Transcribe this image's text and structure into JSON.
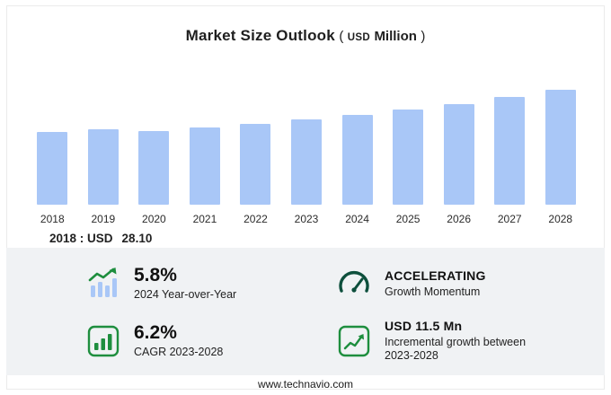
{
  "title": {
    "main": "Market Size Outlook",
    "paren_open": "(",
    "currency": "USD",
    "unit": "Million",
    "paren_close": ")"
  },
  "chart_data": {
    "type": "bar",
    "title": "Market Size Outlook (USD Million)",
    "categories": [
      "2018",
      "2019",
      "2020",
      "2021",
      "2022",
      "2023",
      "2024",
      "2025",
      "2026",
      "2027",
      "2028"
    ],
    "values": [
      28.1,
      29.0,
      28.3,
      29.6,
      31.2,
      32.7,
      34.6,
      36.6,
      38.6,
      41.5,
      44.2
    ],
    "xlabel": "",
    "ylabel": "USD Million",
    "ylim": [
      0,
      46
    ],
    "grid": false,
    "legend": "none",
    "bar_color": "#a9c7f7"
  },
  "annotation": {
    "label": "2018 : USD",
    "value": "28.10"
  },
  "stats": [
    {
      "icon": "bars-growth-icon",
      "value": "5.8%",
      "label": "2024 Year-over-Year"
    },
    {
      "icon": "gauge-icon",
      "value": "ACCELERATING",
      "label": "Growth Momentum"
    },
    {
      "icon": "bar-chart-icon",
      "value": "6.2%",
      "label": "CAGR 2023-2028"
    },
    {
      "icon": "line-chart-icon",
      "value": "USD 11.5 Mn",
      "label": "Incremental growth between 2023-2028"
    }
  ],
  "footer": {
    "url": "www.technavio.com"
  },
  "colors": {
    "bar": "#a9c7f7",
    "accent_green": "#1e8e3e",
    "panel": "#f0f2f4"
  }
}
